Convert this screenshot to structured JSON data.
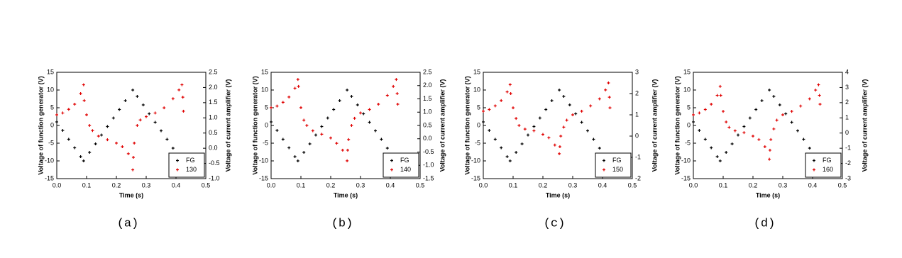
{
  "chart_data": [
    {
      "type": "scatter",
      "caption": "(a)",
      "xlabel": "Time (s)",
      "ylabel": "Voltage of function generator (V)",
      "y2label": "Voltage of current amplifier (V)",
      "xlim": [
        0,
        0.5
      ],
      "xticks": [
        {
          "value": 0,
          "label": "0.0"
        },
        0.1,
        0.2,
        0.3,
        0.4,
        0.5
      ],
      "ylim": [
        -15,
        15
      ],
      "yticks": [
        -15,
        -10,
        -5,
        0,
        5,
        10,
        15
      ],
      "y2lim": [
        -1,
        2.5
      ],
      "y2ticks": [
        {
          "value": -1,
          "label": "-1.0"
        },
        -0.5,
        {
          "value": 0,
          "label": "0.0"
        },
        0.5,
        {
          "value": 1,
          "label": "1.0"
        },
        1.5,
        {
          "value": 2,
          "label": "2.0"
        },
        2.5
      ],
      "legend": "lower right",
      "grid": false,
      "series": [
        {
          "name": "FG",
          "color": "#000000",
          "x": [
            0,
            0.02,
            0.04,
            0.06,
            0.08,
            0.09,
            0.11,
            0.13,
            0.15,
            0.17,
            0.19,
            0.21,
            0.23,
            0.255,
            0.27,
            0.29,
            0.31,
            0.33,
            0.35,
            0.37,
            0.39,
            0.405
          ],
          "values": [
            1,
            -1.4,
            -3.9,
            -6.3,
            -8.8,
            -10,
            -7.6,
            -5.2,
            -2.7,
            -0.3,
            2.1,
            4.5,
            7,
            10,
            8.2,
            5.8,
            3.3,
            0.9,
            -1.5,
            -3.9,
            -6.4,
            -8.2
          ]
        },
        {
          "name": "130",
          "color": "#e00000",
          "axis": "y2",
          "x": [
            0,
            0.02,
            0.04,
            0.06,
            0.08,
            0.09,
            0.092,
            0.1,
            0.11,
            0.12,
            0.14,
            0.17,
            0.2,
            0.22,
            0.24,
            0.255,
            0.257,
            0.26,
            0.27,
            0.28,
            0.3,
            0.33,
            0.36,
            0.39,
            0.41,
            0.42,
            0.423,
            0.425
          ],
          "values": [
            1.1,
            1.16,
            1.28,
            1.45,
            1.8,
            2.09,
            1.57,
            1.1,
            0.75,
            0.58,
            0.4,
            0.28,
            0.17,
            0.05,
            -0.18,
            -0.71,
            -0.3,
            0.17,
            0.75,
            0.93,
            1.04,
            1.16,
            1.33,
            1.63,
            1.92,
            2.09,
            1.68,
            1.22
          ]
        }
      ]
    },
    {
      "type": "scatter",
      "caption": "(b)",
      "xlabel": "Time (s)",
      "ylabel": "Voltage of function generator (V)",
      "y2label": "Voltage of current amplifier (V)",
      "xlim": [
        0,
        0.5
      ],
      "xticks": [
        {
          "value": 0,
          "label": "0.0"
        },
        0.1,
        0.2,
        0.3,
        0.4,
        0.5
      ],
      "ylim": [
        -15,
        15
      ],
      "yticks": [
        -15,
        -10,
        -5,
        0,
        5,
        10,
        15
      ],
      "y2lim": [
        -1.5,
        2.5
      ],
      "y2ticks": [
        -1.5,
        {
          "value": -1,
          "label": "-1.0"
        },
        -0.5,
        {
          "value": 0,
          "label": "0.0"
        },
        0.5,
        {
          "value": 1,
          "label": "1.0"
        },
        1.5,
        {
          "value": 2,
          "label": "2.0"
        },
        2.5
      ],
      "legend": "lower right",
      "grid": false,
      "series": [
        {
          "name": "FG",
          "color": "#000000",
          "x": [
            0,
            0.02,
            0.04,
            0.06,
            0.08,
            0.09,
            0.11,
            0.13,
            0.15,
            0.17,
            0.19,
            0.21,
            0.23,
            0.255,
            0.27,
            0.29,
            0.31,
            0.33,
            0.35,
            0.37,
            0.39,
            0.405
          ],
          "values": [
            1,
            -1.4,
            -3.9,
            -6.3,
            -8.8,
            -10,
            -7.6,
            -5.2,
            -2.7,
            -0.3,
            2.1,
            4.5,
            7,
            10,
            8.2,
            5.8,
            3.3,
            0.9,
            -1.5,
            -3.9,
            -6.4,
            -8.2
          ]
        },
        {
          "name": "140",
          "color": "#e00000",
          "axis": "y2",
          "x": [
            0,
            0.02,
            0.04,
            0.06,
            0.08,
            0.09,
            0.092,
            0.1,
            0.11,
            0.12,
            0.14,
            0.17,
            0.2,
            0.22,
            0.24,
            0.255,
            0.257,
            0.26,
            0.27,
            0.28,
            0.3,
            0.33,
            0.36,
            0.39,
            0.41,
            0.42,
            0.423,
            0.425
          ],
          "values": [
            1.17,
            1.23,
            1.37,
            1.57,
            1.9,
            2.23,
            1.97,
            1.17,
            0.7,
            0.5,
            0.3,
            0.17,
            0.03,
            -0.17,
            -0.43,
            -0.83,
            -0.43,
            -0.03,
            0.5,
            0.77,
            0.97,
            1.1,
            1.3,
            1.63,
            1.97,
            2.23,
            1.7,
            1.3
          ]
        }
      ]
    },
    {
      "type": "scatter",
      "caption": "(c)",
      "xlabel": "Time (s)",
      "ylabel": "Voltage of function generator (V)",
      "y2label": "Voltage of current amplifier (V)",
      "xlim": [
        0,
        0.5
      ],
      "xticks": [
        {
          "value": 0,
          "label": "0.0"
        },
        0.1,
        0.2,
        0.3,
        0.4,
        0.5
      ],
      "ylim": [
        -15,
        15
      ],
      "yticks": [
        -15,
        -10,
        -5,
        0,
        5,
        10,
        15
      ],
      "y2lim": [
        -2,
        3
      ],
      "y2ticks": [
        -2,
        -1,
        0,
        1,
        2,
        3
      ],
      "legend": "lower right",
      "grid": false,
      "series": [
        {
          "name": "FG",
          "color": "#000000",
          "x": [
            0,
            0.02,
            0.04,
            0.06,
            0.08,
            0.09,
            0.11,
            0.13,
            0.15,
            0.17,
            0.19,
            0.21,
            0.23,
            0.255,
            0.27,
            0.29,
            0.31,
            0.33,
            0.35,
            0.37,
            0.39,
            0.405
          ],
          "values": [
            1,
            -1.4,
            -3.9,
            -6.3,
            -8.8,
            -10,
            -7.6,
            -5.2,
            -2.7,
            -0.3,
            2.1,
            4.5,
            7,
            10,
            8.2,
            5.8,
            3.3,
            0.9,
            -1.5,
            -3.9,
            -6.4,
            -8.2
          ]
        },
        {
          "name": "150",
          "color": "#e00000",
          "axis": "y2",
          "x": [
            0,
            0.02,
            0.04,
            0.06,
            0.08,
            0.09,
            0.092,
            0.1,
            0.11,
            0.12,
            0.14,
            0.17,
            0.2,
            0.22,
            0.24,
            0.255,
            0.257,
            0.26,
            0.27,
            0.28,
            0.3,
            0.33,
            0.36,
            0.39,
            0.41,
            0.42,
            0.423,
            0.425
          ],
          "values": [
            1.17,
            1.25,
            1.42,
            1.67,
            2.08,
            2.42,
            2,
            1.33,
            0.83,
            0.5,
            0.33,
            0.25,
            0.08,
            -0.08,
            -0.42,
            -0.83,
            -0.5,
            0,
            0.42,
            0.75,
            1,
            1.17,
            1.42,
            1.75,
            2.17,
            2.5,
            1.83,
            1.33
          ]
        }
      ]
    },
    {
      "type": "scatter",
      "caption": "(d)",
      "xlabel": "Time (s)",
      "ylabel": "Voltage of function generator (V)",
      "y2label": "Voltage of current amplifier (V)",
      "xlim": [
        0,
        0.5
      ],
      "xticks": [
        {
          "value": 0,
          "label": "0.0"
        },
        0.1,
        0.2,
        0.3,
        0.4,
        0.5
      ],
      "ylim": [
        -15,
        15
      ],
      "yticks": [
        -15,
        -10,
        -5,
        0,
        5,
        10,
        15
      ],
      "y2lim": [
        -3,
        4
      ],
      "y2ticks": [
        -3,
        -2,
        -1,
        0,
        1,
        2,
        3,
        4
      ],
      "legend": "lower right",
      "grid": false,
      "series": [
        {
          "name": "FG",
          "color": "#000000",
          "x": [
            0,
            0.02,
            0.04,
            0.06,
            0.08,
            0.09,
            0.11,
            0.13,
            0.15,
            0.17,
            0.19,
            0.21,
            0.23,
            0.255,
            0.27,
            0.29,
            0.31,
            0.33,
            0.35,
            0.37,
            0.39,
            0.405
          ],
          "values": [
            1,
            -1.4,
            -3.9,
            -6.3,
            -8.8,
            -10,
            -7.6,
            -5.2,
            -2.7,
            -0.3,
            2.1,
            4.5,
            7,
            10,
            8.2,
            5.8,
            3.3,
            0.9,
            -1.5,
            -3.9,
            -6.4,
            -8.2
          ]
        },
        {
          "name": "160",
          "color": "#e00000",
          "axis": "y2",
          "x": [
            0,
            0.02,
            0.04,
            0.06,
            0.08,
            0.09,
            0.092,
            0.1,
            0.11,
            0.12,
            0.14,
            0.17,
            0.2,
            0.22,
            0.24,
            0.255,
            0.257,
            0.26,
            0.27,
            0.28,
            0.3,
            0.33,
            0.36,
            0.39,
            0.41,
            0.42,
            0.423,
            0.425
          ],
          "values": [
            1.2,
            1.32,
            1.55,
            1.9,
            2.48,
            3.07,
            2.48,
            1.43,
            0.73,
            0.38,
            0.15,
            0.03,
            -0.2,
            -0.43,
            -0.9,
            -1.72,
            -1.13,
            -0.43,
            0.27,
            0.85,
            1.2,
            1.43,
            1.78,
            2.25,
            2.83,
            3.18,
            2.48,
            1.9
          ]
        }
      ]
    }
  ]
}
